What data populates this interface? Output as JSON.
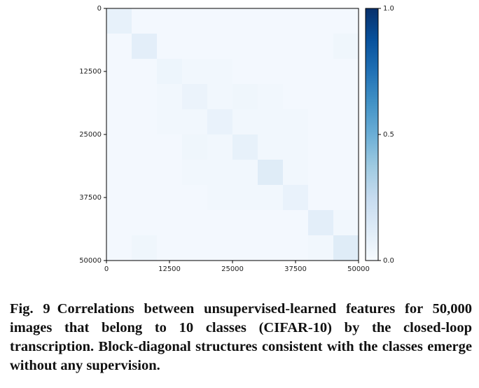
{
  "chart_data": {
    "type": "heatmap",
    "colormap": "Blues",
    "values": [
      [
        0.08,
        0.02,
        0.02,
        0.02,
        0.02,
        0.02,
        0.02,
        0.02,
        0.02,
        0.02
      ],
      [
        0.02,
        0.1,
        0.02,
        0.02,
        0.02,
        0.02,
        0.02,
        0.02,
        0.02,
        0.04
      ],
      [
        0.02,
        0.02,
        0.05,
        0.03,
        0.03,
        0.02,
        0.02,
        0.02,
        0.02,
        0.02
      ],
      [
        0.02,
        0.02,
        0.03,
        0.06,
        0.03,
        0.04,
        0.03,
        0.02,
        0.02,
        0.02
      ],
      [
        0.02,
        0.02,
        0.03,
        0.03,
        0.07,
        0.03,
        0.03,
        0.03,
        0.02,
        0.02
      ],
      [
        0.02,
        0.02,
        0.02,
        0.04,
        0.03,
        0.08,
        0.03,
        0.03,
        0.02,
        0.02
      ],
      [
        0.02,
        0.02,
        0.02,
        0.03,
        0.03,
        0.03,
        0.12,
        0.03,
        0.02,
        0.02
      ],
      [
        0.02,
        0.02,
        0.02,
        0.02,
        0.03,
        0.03,
        0.03,
        0.07,
        0.02,
        0.02
      ],
      [
        0.02,
        0.02,
        0.02,
        0.02,
        0.02,
        0.02,
        0.02,
        0.02,
        0.1,
        0.03
      ],
      [
        0.02,
        0.04,
        0.02,
        0.02,
        0.02,
        0.02,
        0.02,
        0.02,
        0.03,
        0.12
      ]
    ],
    "xlim": [
      0,
      50000
    ],
    "xticks": [
      0,
      12500,
      25000,
      37500,
      50000
    ],
    "ylim": [
      0,
      50000
    ],
    "yticks": [
      0,
      12500,
      25000,
      37500,
      50000
    ],
    "y_inverted": true,
    "colorbar": {
      "lim": [
        0,
        1
      ],
      "ticks": [
        {
          "value": 0,
          "label": "0.0"
        },
        {
          "value": 0.5,
          "label": "0.5"
        },
        {
          "value": 1,
          "label": "1.0"
        }
      ]
    }
  },
  "caption": {
    "label": "Fig. 9",
    "text": "Correlations between unsupervised-learned features for 50,000 images that belong to 10 classes (CIFAR-10) by the closed-loop transcription. Block-diagonal structures consistent with the classes emerge without any supervision."
  }
}
